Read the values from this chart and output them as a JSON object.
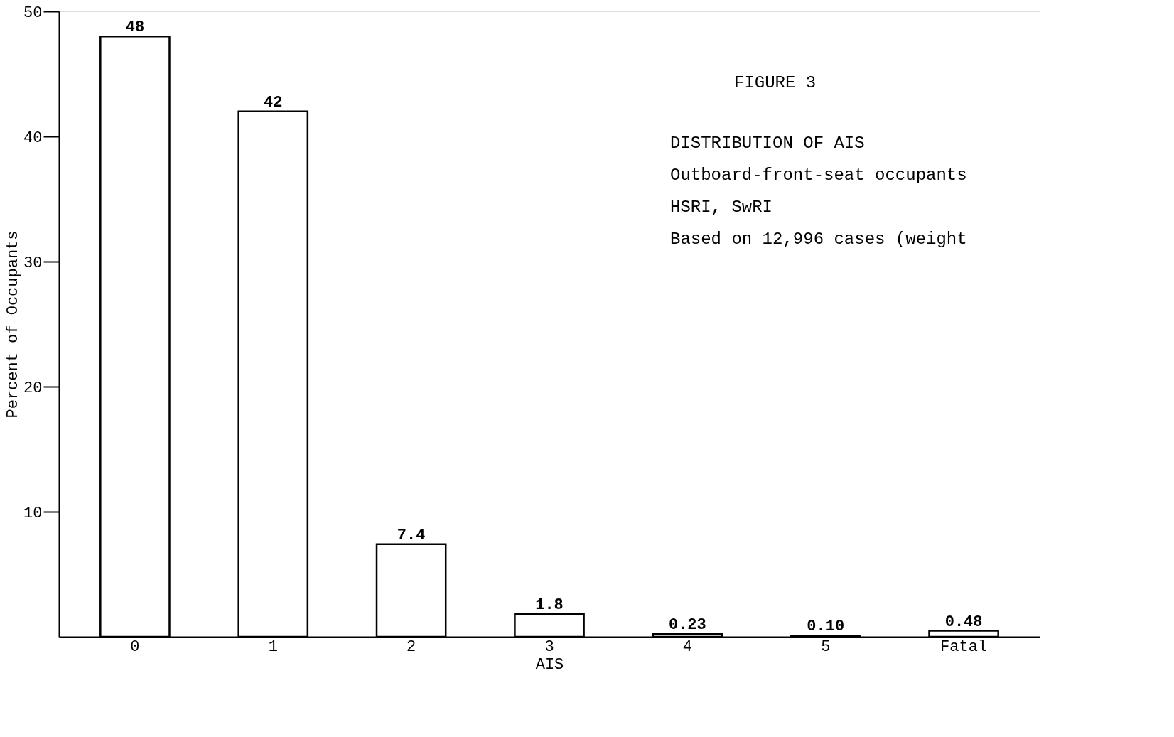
{
  "chart_data": {
    "type": "bar",
    "title": "FIGURE 3",
    "subtitle": "DISTRIBUTION OF AIS",
    "xlabel": "AIS",
    "ylabel": "Percent of Occupants",
    "categories": [
      "0",
      "1",
      "2",
      "3",
      "4",
      "5",
      "Fatal"
    ],
    "values": [
      48,
      42,
      7.4,
      1.8,
      0.23,
      0.1,
      0.48
    ],
    "value_labels": [
      "48",
      "42",
      "7.4",
      "1.8",
      "0.23",
      "0.10",
      "0.48"
    ],
    "color": "#ffffff",
    "ylim": [
      0,
      50
    ],
    "yticks": [
      10,
      20,
      30,
      40,
      50
    ],
    "grid": false,
    "annotations": [
      "Outboard-front-seat occupants",
      "HSRI, SwRI",
      "Based on 12,996 cases (weight"
    ]
  }
}
